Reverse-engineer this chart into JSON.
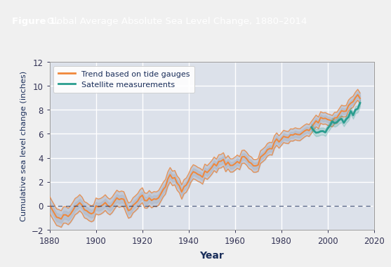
{
  "title_figure": "Figure 1.",
  "title_rest": "  Global Average Absolute Sea Level Change, 1880–2014",
  "title_bg_color": "#2e86c1",
  "title_text_color": "#ffffff",
  "xlabel": "Year",
  "ylabel": "Cumulative sea level change (inches)",
  "xlim": [
    1880,
    2020
  ],
  "ylim": [
    -2,
    12
  ],
  "yticks": [
    -2,
    0,
    2,
    4,
    6,
    8,
    10,
    12
  ],
  "xticks": [
    1880,
    1900,
    1920,
    1940,
    1960,
    1980,
    2000,
    2020
  ],
  "plot_bg_color": "#dce1ea",
  "outer_bg_color": "#f0f0f0",
  "grid_color": "#ffffff",
  "tide_color": "#f0873a",
  "tide_band_color": "#b0b8c8",
  "satellite_color": "#2a9d8f",
  "dashed_line_color": "#1a2e5a",
  "legend_bg": "#ffffff",
  "legend_edge": "#cccccc",
  "tick_color": "#333355",
  "label_color": "#1a2e5a"
}
